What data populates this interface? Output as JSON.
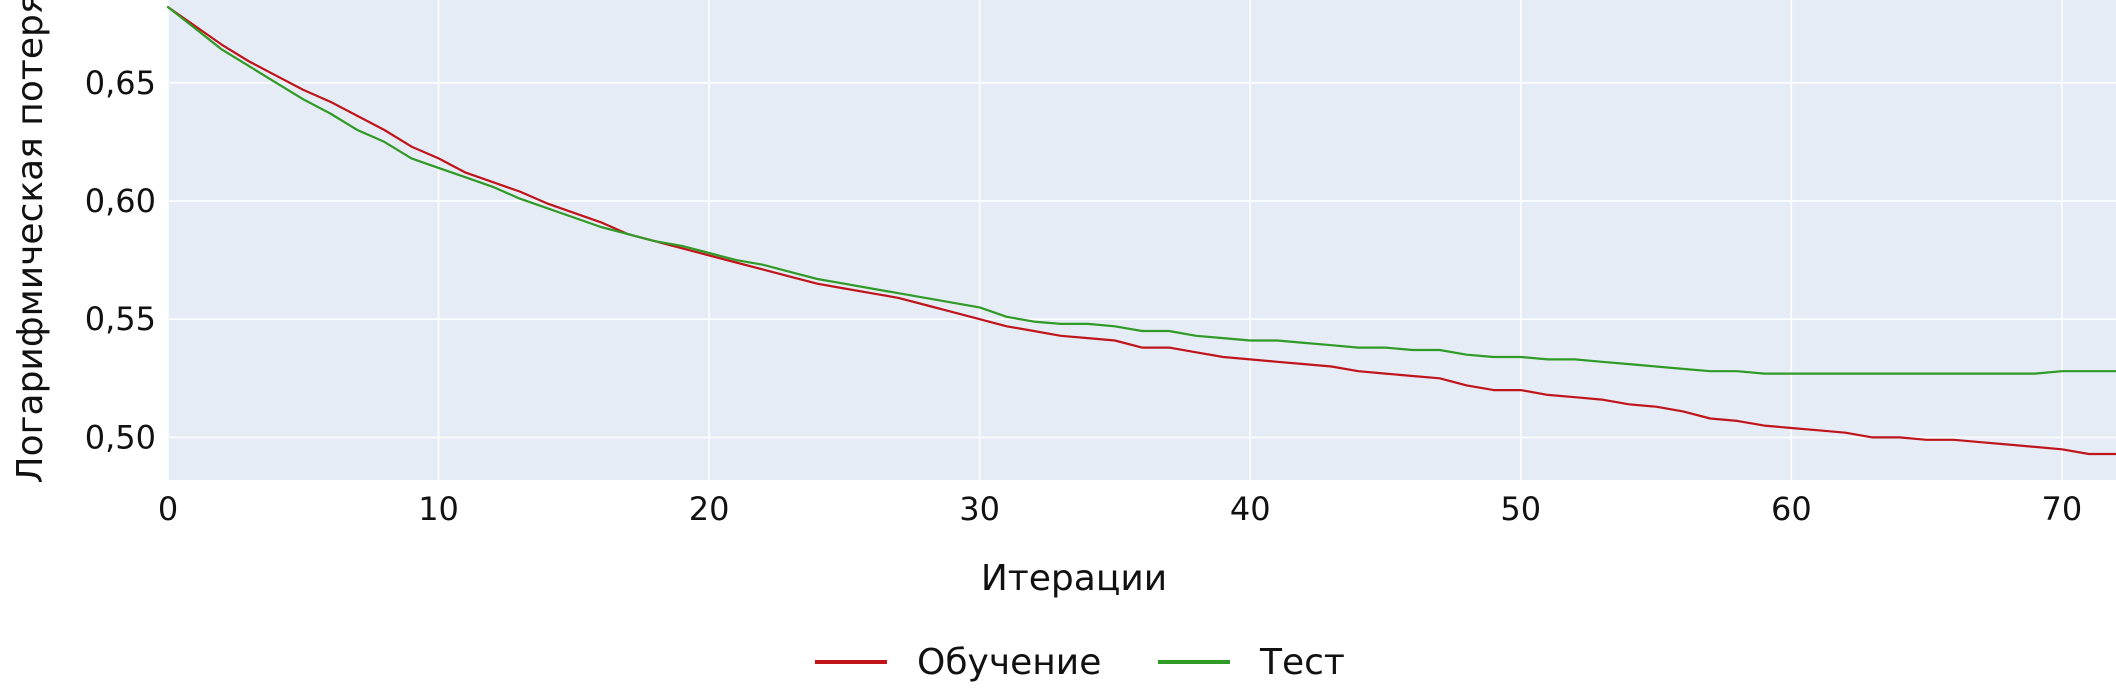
{
  "chart_data": {
    "type": "line",
    "title": "",
    "xlabel": "Итерации",
    "ylabel": "Логарифмическая потеря",
    "xlim": [
      0,
      72
    ],
    "ylim": [
      0.482,
      0.685
    ],
    "xticks": [
      {
        "value": 0,
        "label": "0"
      },
      {
        "value": 10,
        "label": "10"
      },
      {
        "value": 20,
        "label": "20"
      },
      {
        "value": 30,
        "label": "30"
      },
      {
        "value": 40,
        "label": "40"
      },
      {
        "value": 50,
        "label": "50"
      },
      {
        "value": 60,
        "label": "60"
      },
      {
        "value": 70,
        "label": "70"
      }
    ],
    "yticks": [
      {
        "value": 0.5,
        "label": "0,50"
      },
      {
        "value": 0.55,
        "label": "0,55"
      },
      {
        "value": 0.6,
        "label": "0,60"
      },
      {
        "value": 0.65,
        "label": "0,65"
      }
    ],
    "grid": true,
    "legend_position": "bottom-center",
    "plot_background": "#e5ecf6",
    "grid_color": "#ffffff",
    "x": [
      0,
      1,
      2,
      3,
      4,
      5,
      6,
      7,
      8,
      9,
      10,
      11,
      12,
      13,
      14,
      15,
      16,
      17,
      18,
      19,
      20,
      21,
      22,
      23,
      24,
      25,
      26,
      27,
      28,
      29,
      30,
      31,
      32,
      33,
      34,
      35,
      36,
      37,
      38,
      39,
      40,
      41,
      42,
      43,
      44,
      45,
      46,
      47,
      48,
      49,
      50,
      51,
      52,
      53,
      54,
      55,
      56,
      57,
      58,
      59,
      60,
      61,
      62,
      63,
      64,
      65,
      66,
      67,
      68,
      69,
      70,
      71,
      72
    ],
    "series": [
      {
        "name": "Обучение",
        "color": "#c0141b",
        "values": [
          0.682,
          0.674,
          0.666,
          0.659,
          0.653,
          0.647,
          0.642,
          0.636,
          0.63,
          0.623,
          0.618,
          0.612,
          0.608,
          0.604,
          0.599,
          0.595,
          0.591,
          0.586,
          0.583,
          0.58,
          0.577,
          0.574,
          0.571,
          0.568,
          0.565,
          0.563,
          0.561,
          0.559,
          0.556,
          0.553,
          0.55,
          0.547,
          0.545,
          0.543,
          0.542,
          0.541,
          0.538,
          0.538,
          0.536,
          0.534,
          0.533,
          0.532,
          0.531,
          0.53,
          0.528,
          0.527,
          0.526,
          0.525,
          0.522,
          0.52,
          0.52,
          0.518,
          0.517,
          0.516,
          0.514,
          0.513,
          0.511,
          0.508,
          0.507,
          0.505,
          0.504,
          0.503,
          0.502,
          0.5,
          0.5,
          0.499,
          0.499,
          0.498,
          0.497,
          0.496,
          0.495,
          0.493,
          0.493
        ]
      },
      {
        "name": "Тест",
        "color": "#2f9a25",
        "values": [
          0.682,
          0.673,
          0.664,
          0.657,
          0.65,
          0.643,
          0.637,
          0.63,
          0.625,
          0.618,
          0.614,
          0.61,
          0.606,
          0.601,
          0.597,
          0.593,
          0.589,
          0.586,
          0.583,
          0.581,
          0.578,
          0.575,
          0.573,
          0.57,
          0.567,
          0.565,
          0.563,
          0.561,
          0.559,
          0.557,
          0.555,
          0.551,
          0.549,
          0.548,
          0.548,
          0.547,
          0.545,
          0.545,
          0.543,
          0.542,
          0.541,
          0.541,
          0.54,
          0.539,
          0.538,
          0.538,
          0.537,
          0.537,
          0.535,
          0.534,
          0.534,
          0.533,
          0.533,
          0.532,
          0.531,
          0.53,
          0.529,
          0.528,
          0.528,
          0.527,
          0.527,
          0.527,
          0.527,
          0.527,
          0.527,
          0.527,
          0.527,
          0.527,
          0.527,
          0.527,
          0.528,
          0.528,
          0.528
        ]
      }
    ]
  }
}
